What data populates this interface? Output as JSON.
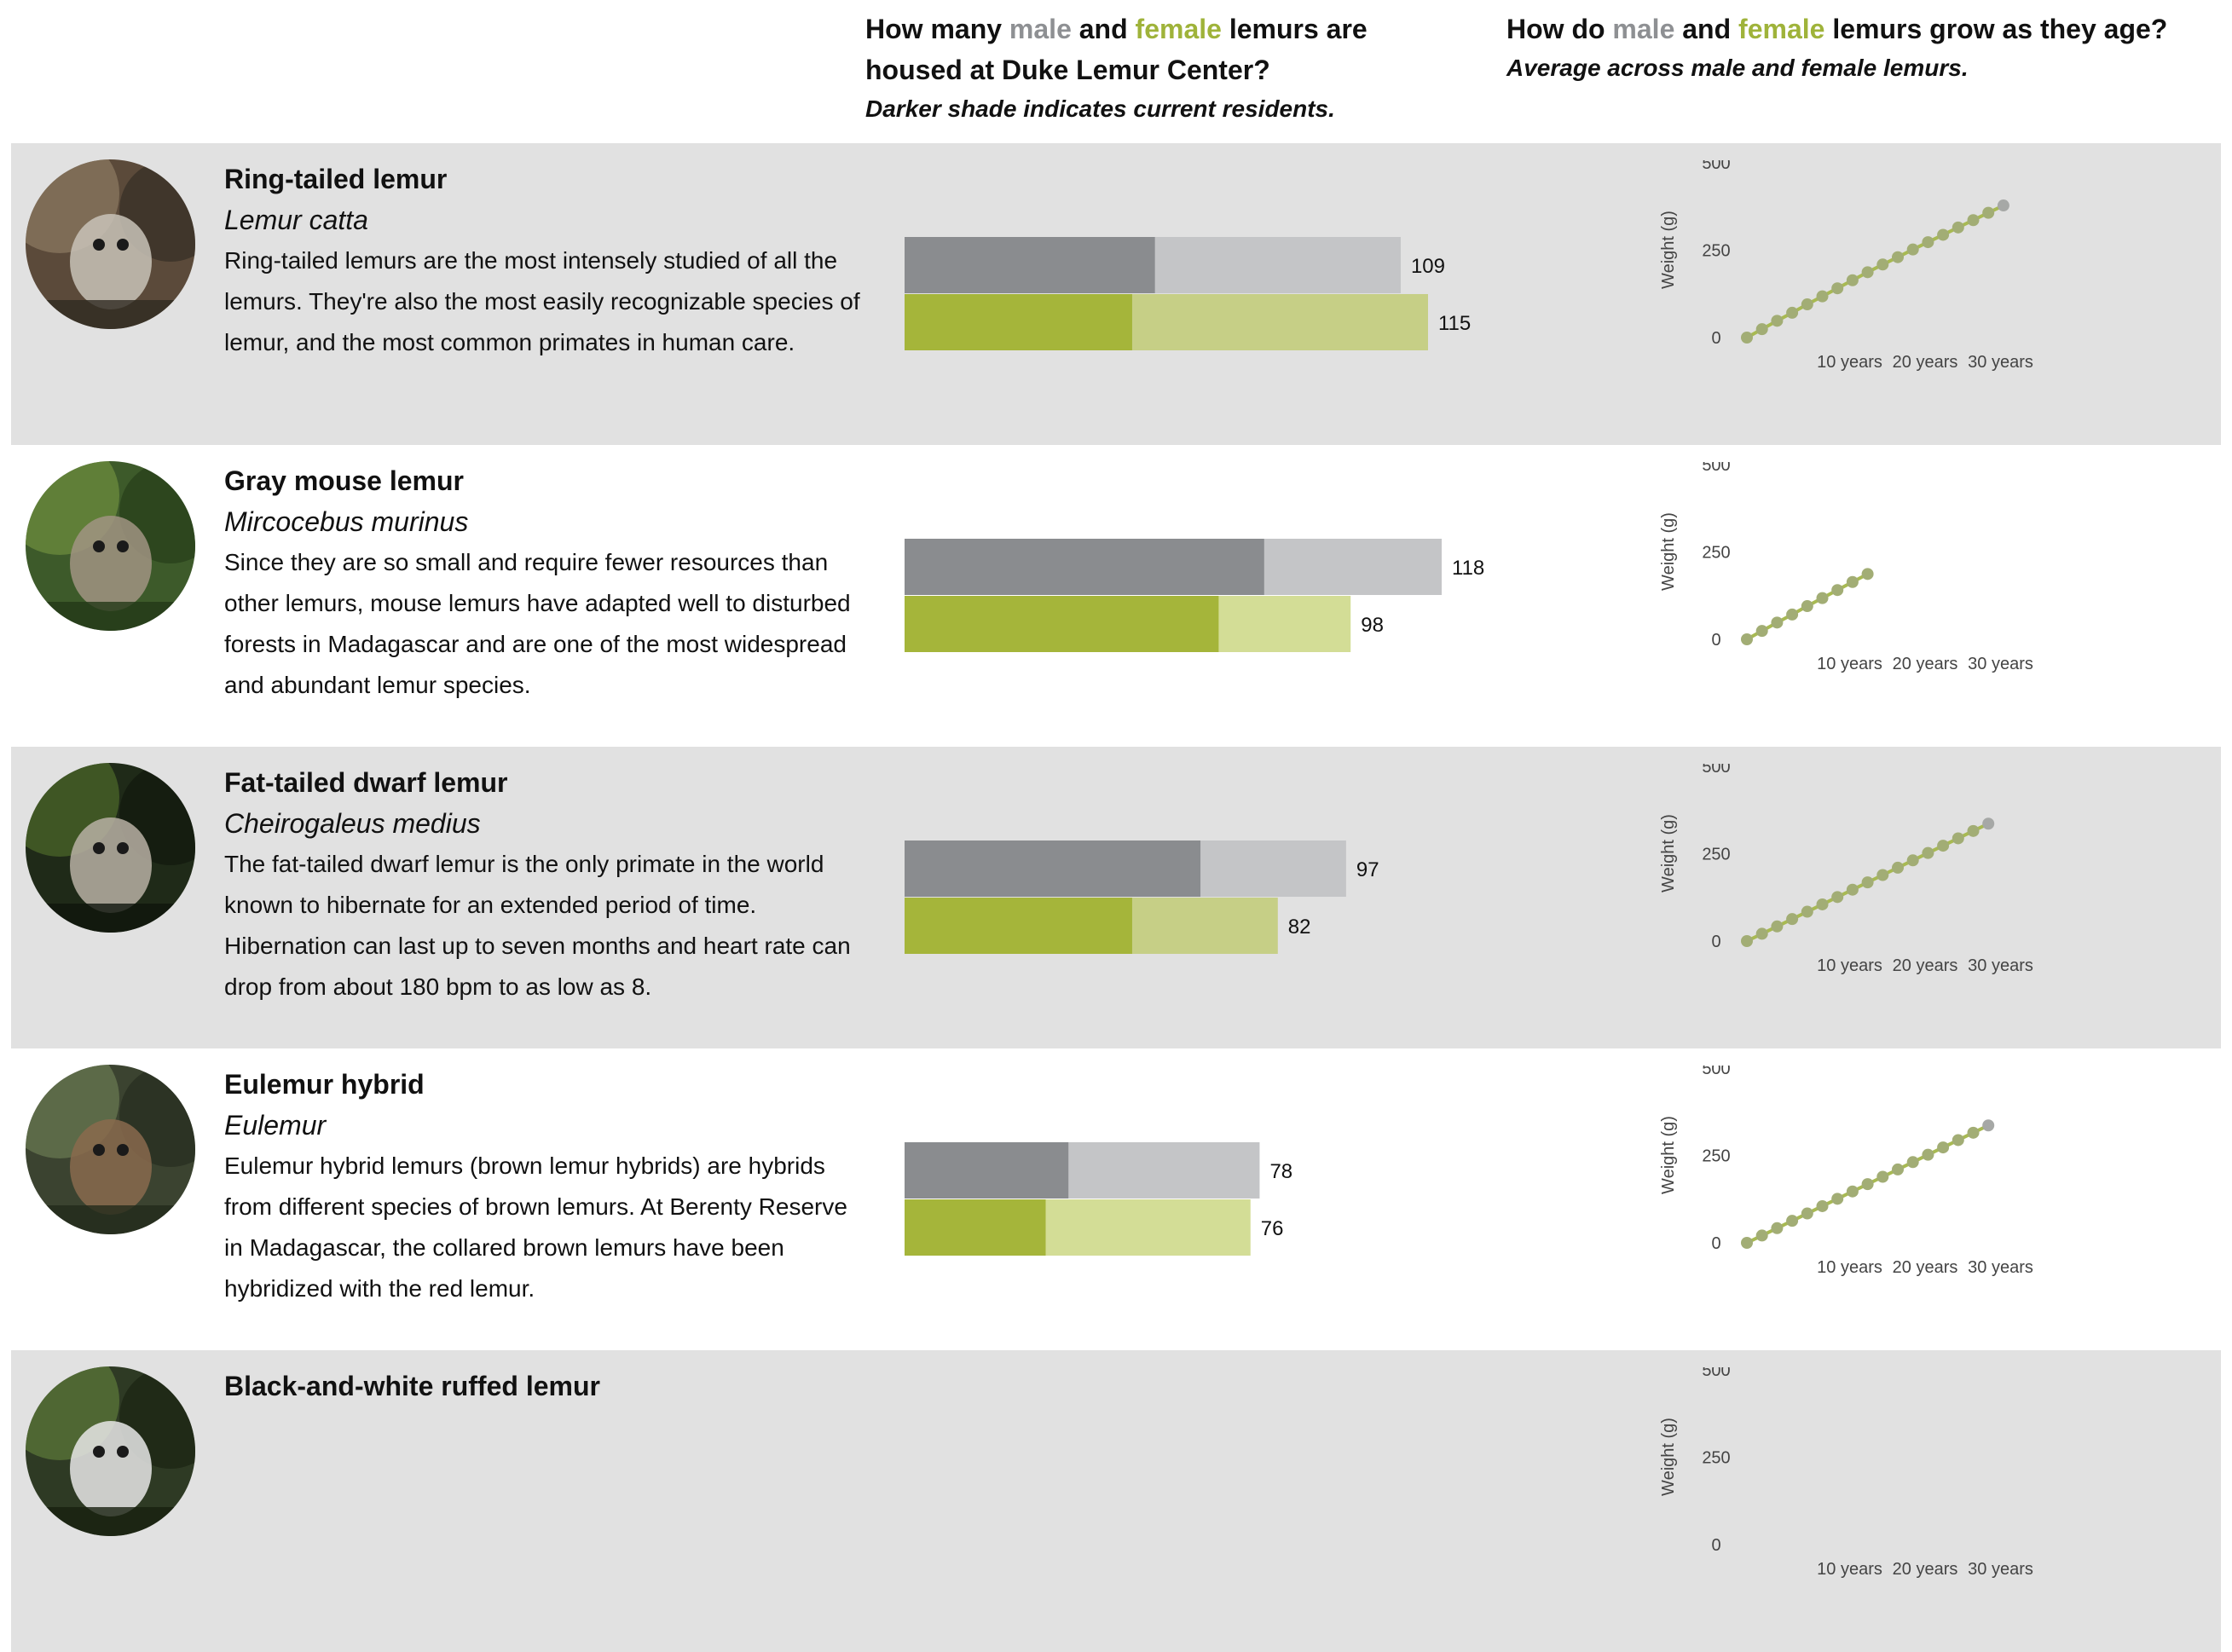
{
  "header": {
    "counts": {
      "title_pre": "How many",
      "male_word": "male",
      "and_word": "and",
      "female_word": "female",
      "title_post": "lemurs are housed at Duke Lemur Center?",
      "subtitle": "Darker shade indicates current residents."
    },
    "growth": {
      "title_pre": "How do",
      "male_word": "male",
      "and_word": "and",
      "female_word": "female",
      "title_post": "lemurs grow as they age?",
      "subtitle": "Average across male and female lemurs."
    }
  },
  "colors": {
    "male_dark": "#8a8c8f",
    "male_light": "#c4c5c7",
    "female_dark": "#a5b53a",
    "female_light_alt": "#d3dd96",
    "female_light": "#c6cf86",
    "growth_line": "#a8ba52",
    "growth_point": "#a2ad75",
    "growth_point_end": "#a6a8a6",
    "row_shade": "#e1e1e1"
  },
  "species": [
    {
      "common_name": "Ring-tailed lemur",
      "scientific_name": "Lemur catta",
      "description": "Ring-tailed lemurs are the most intensely studied of all the lemurs. They're also the most easily recognizable species of lemur, and the most common primates in human care.",
      "photo_icon": "ring-tailed-lemur-photo",
      "shaded": true
    },
    {
      "common_name": "Gray mouse lemur",
      "scientific_name": "Mircocebus murinus",
      "description": "Since they are so small and require fewer resources than other lemurs, mouse lemurs have adapted well to disturbed forests in Madagascar and are one of the most widespread and abundant lemur species.",
      "photo_icon": "gray-mouse-lemur-photo",
      "shaded": false
    },
    {
      "common_name": "Fat-tailed dwarf lemur",
      "scientific_name": "Cheirogaleus medius",
      "description": "The fat-tailed dwarf lemur is the only primate in the world known to hibernate for an extended period of time. Hibernation can last up to seven months and heart rate can drop from about 180 bpm to as low as 8.",
      "photo_icon": "fat-tailed-dwarf-lemur-photo",
      "shaded": true
    },
    {
      "common_name": "Eulemur hybrid",
      "scientific_name": "Eulemur",
      "description": "Eulemur hybrid lemurs (brown lemur hybrids) are hybrids from different species of brown lemurs. At Berenty Reserve in Madagascar, the collared brown lemurs have been hybridized with the red lemur.",
      "photo_icon": "eulemur-hybrid-photo",
      "shaded": false
    },
    {
      "common_name": "Black-and-white ruffed lemur",
      "scientific_name": "",
      "description": "",
      "photo_icon": "black-and-white-ruffed-lemur-photo",
      "shaded": true
    }
  ],
  "chart_data": [
    {
      "type": "bar",
      "title": "How many male and female lemurs are housed at Duke Lemur Center?",
      "subtitle": "Darker shade indicates current residents.",
      "categories": [
        "Ring-tailed lemur",
        "Gray mouse lemur",
        "Fat-tailed dwarf lemur",
        "Eulemur hybrid"
      ],
      "series": [
        {
          "name": "male",
          "values": [
            109,
            118,
            97,
            78
          ],
          "current_residents": [
            55,
            79,
            65,
            36
          ]
        },
        {
          "name": "female",
          "values": [
            115,
            98,
            82,
            76
          ],
          "current_residents": [
            50,
            69,
            50,
            31
          ]
        }
      ],
      "xlim": [
        0,
        118
      ]
    },
    {
      "type": "line",
      "title": "How do male and female lemurs grow as they age?",
      "subtitle": "Average across male and female lemurs.",
      "ylabel": "Weight (g)",
      "yticks": [
        0,
        250,
        500
      ],
      "xticks": [
        "10 years",
        "20 years",
        "30 years"
      ],
      "ylim": [
        0,
        500
      ],
      "xlim": [
        0,
        40
      ],
      "series": [
        {
          "name": "Ring-tailed lemur",
          "x": [
            0,
            2,
            4,
            6,
            8,
            10,
            12,
            14,
            16,
            18,
            20,
            22,
            24,
            26,
            28,
            30,
            32,
            34
          ],
          "y": [
            0,
            24,
            48,
            71,
            95,
            118,
            141,
            164,
            187,
            209,
            230,
            252,
            273,
            294,
            315,
            336,
            357,
            378
          ]
        },
        {
          "name": "Gray mouse lemur",
          "x": [
            0,
            2,
            4,
            6,
            8,
            10,
            12,
            14,
            16
          ],
          "y": [
            0,
            24,
            48,
            71,
            95,
            118,
            141,
            164,
            187
          ]
        },
        {
          "name": "Fat-tailed dwarf lemur",
          "x": [
            0,
            2,
            4,
            6,
            8,
            10,
            12,
            14,
            16,
            18,
            20,
            22,
            24,
            26,
            28,
            30,
            32
          ],
          "y": [
            0,
            21,
            42,
            63,
            84,
            105,
            126,
            147,
            168,
            189,
            210,
            231,
            252,
            273,
            294,
            315,
            336
          ]
        },
        {
          "name": "Eulemur hybrid",
          "x": [
            0,
            2,
            4,
            6,
            8,
            10,
            12,
            14,
            16,
            18,
            20,
            22,
            24,
            26,
            28,
            30,
            32
          ],
          "y": [
            0,
            21,
            42,
            63,
            84,
            105,
            126,
            147,
            168,
            189,
            210,
            231,
            252,
            273,
            294,
            315,
            336
          ]
        }
      ]
    }
  ]
}
